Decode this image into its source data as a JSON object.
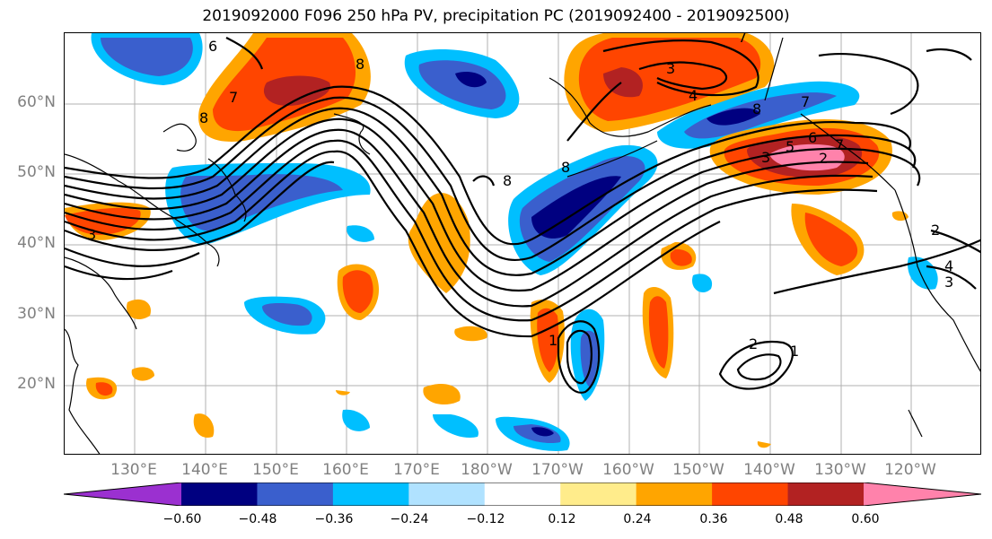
{
  "title": "2019092000 F096 250 hPa PV, precipitation PC (2019092400 - 2019092500)",
  "lat_labels": [
    "60°N",
    "50°N",
    "40°N",
    "30°N",
    "20°N"
  ],
  "lon_labels": [
    "130°E",
    "140°E",
    "150°E",
    "160°E",
    "170°E",
    "180°W",
    "170°W",
    "160°W",
    "150°W",
    "140°W",
    "130°W",
    "120°W"
  ],
  "colorbar": {
    "ticks": [
      "−0.60",
      "−0.48",
      "−0.36",
      "−0.24",
      "−0.12",
      "0.12",
      "0.24",
      "0.36",
      "0.48",
      "0.60"
    ],
    "colors": [
      "#9b30d0",
      "#000080",
      "#3a5fcd",
      "#00bfff",
      "#b0e2ff",
      "#ffffff",
      "#ffec8b",
      "#ffa500",
      "#ff4500",
      "#b22222",
      "#ff82ab"
    ]
  },
  "contour_labels": [
    "6",
    "8",
    "7",
    "8",
    "8",
    "8",
    "7",
    "3",
    "4",
    "8",
    "5",
    "6",
    "7",
    "3",
    "7",
    "2",
    "1",
    "4",
    "3",
    "2",
    "1",
    "2",
    "3"
  ],
  "map_data": {
    "projection": "PlateCarree",
    "extent": {
      "lon": [
        120,
        250
      ],
      "lat": [
        10,
        70
      ]
    },
    "fields": [
      "250 hPa PV (contours)",
      "precipitation PC (shaded)"
    ]
  }
}
